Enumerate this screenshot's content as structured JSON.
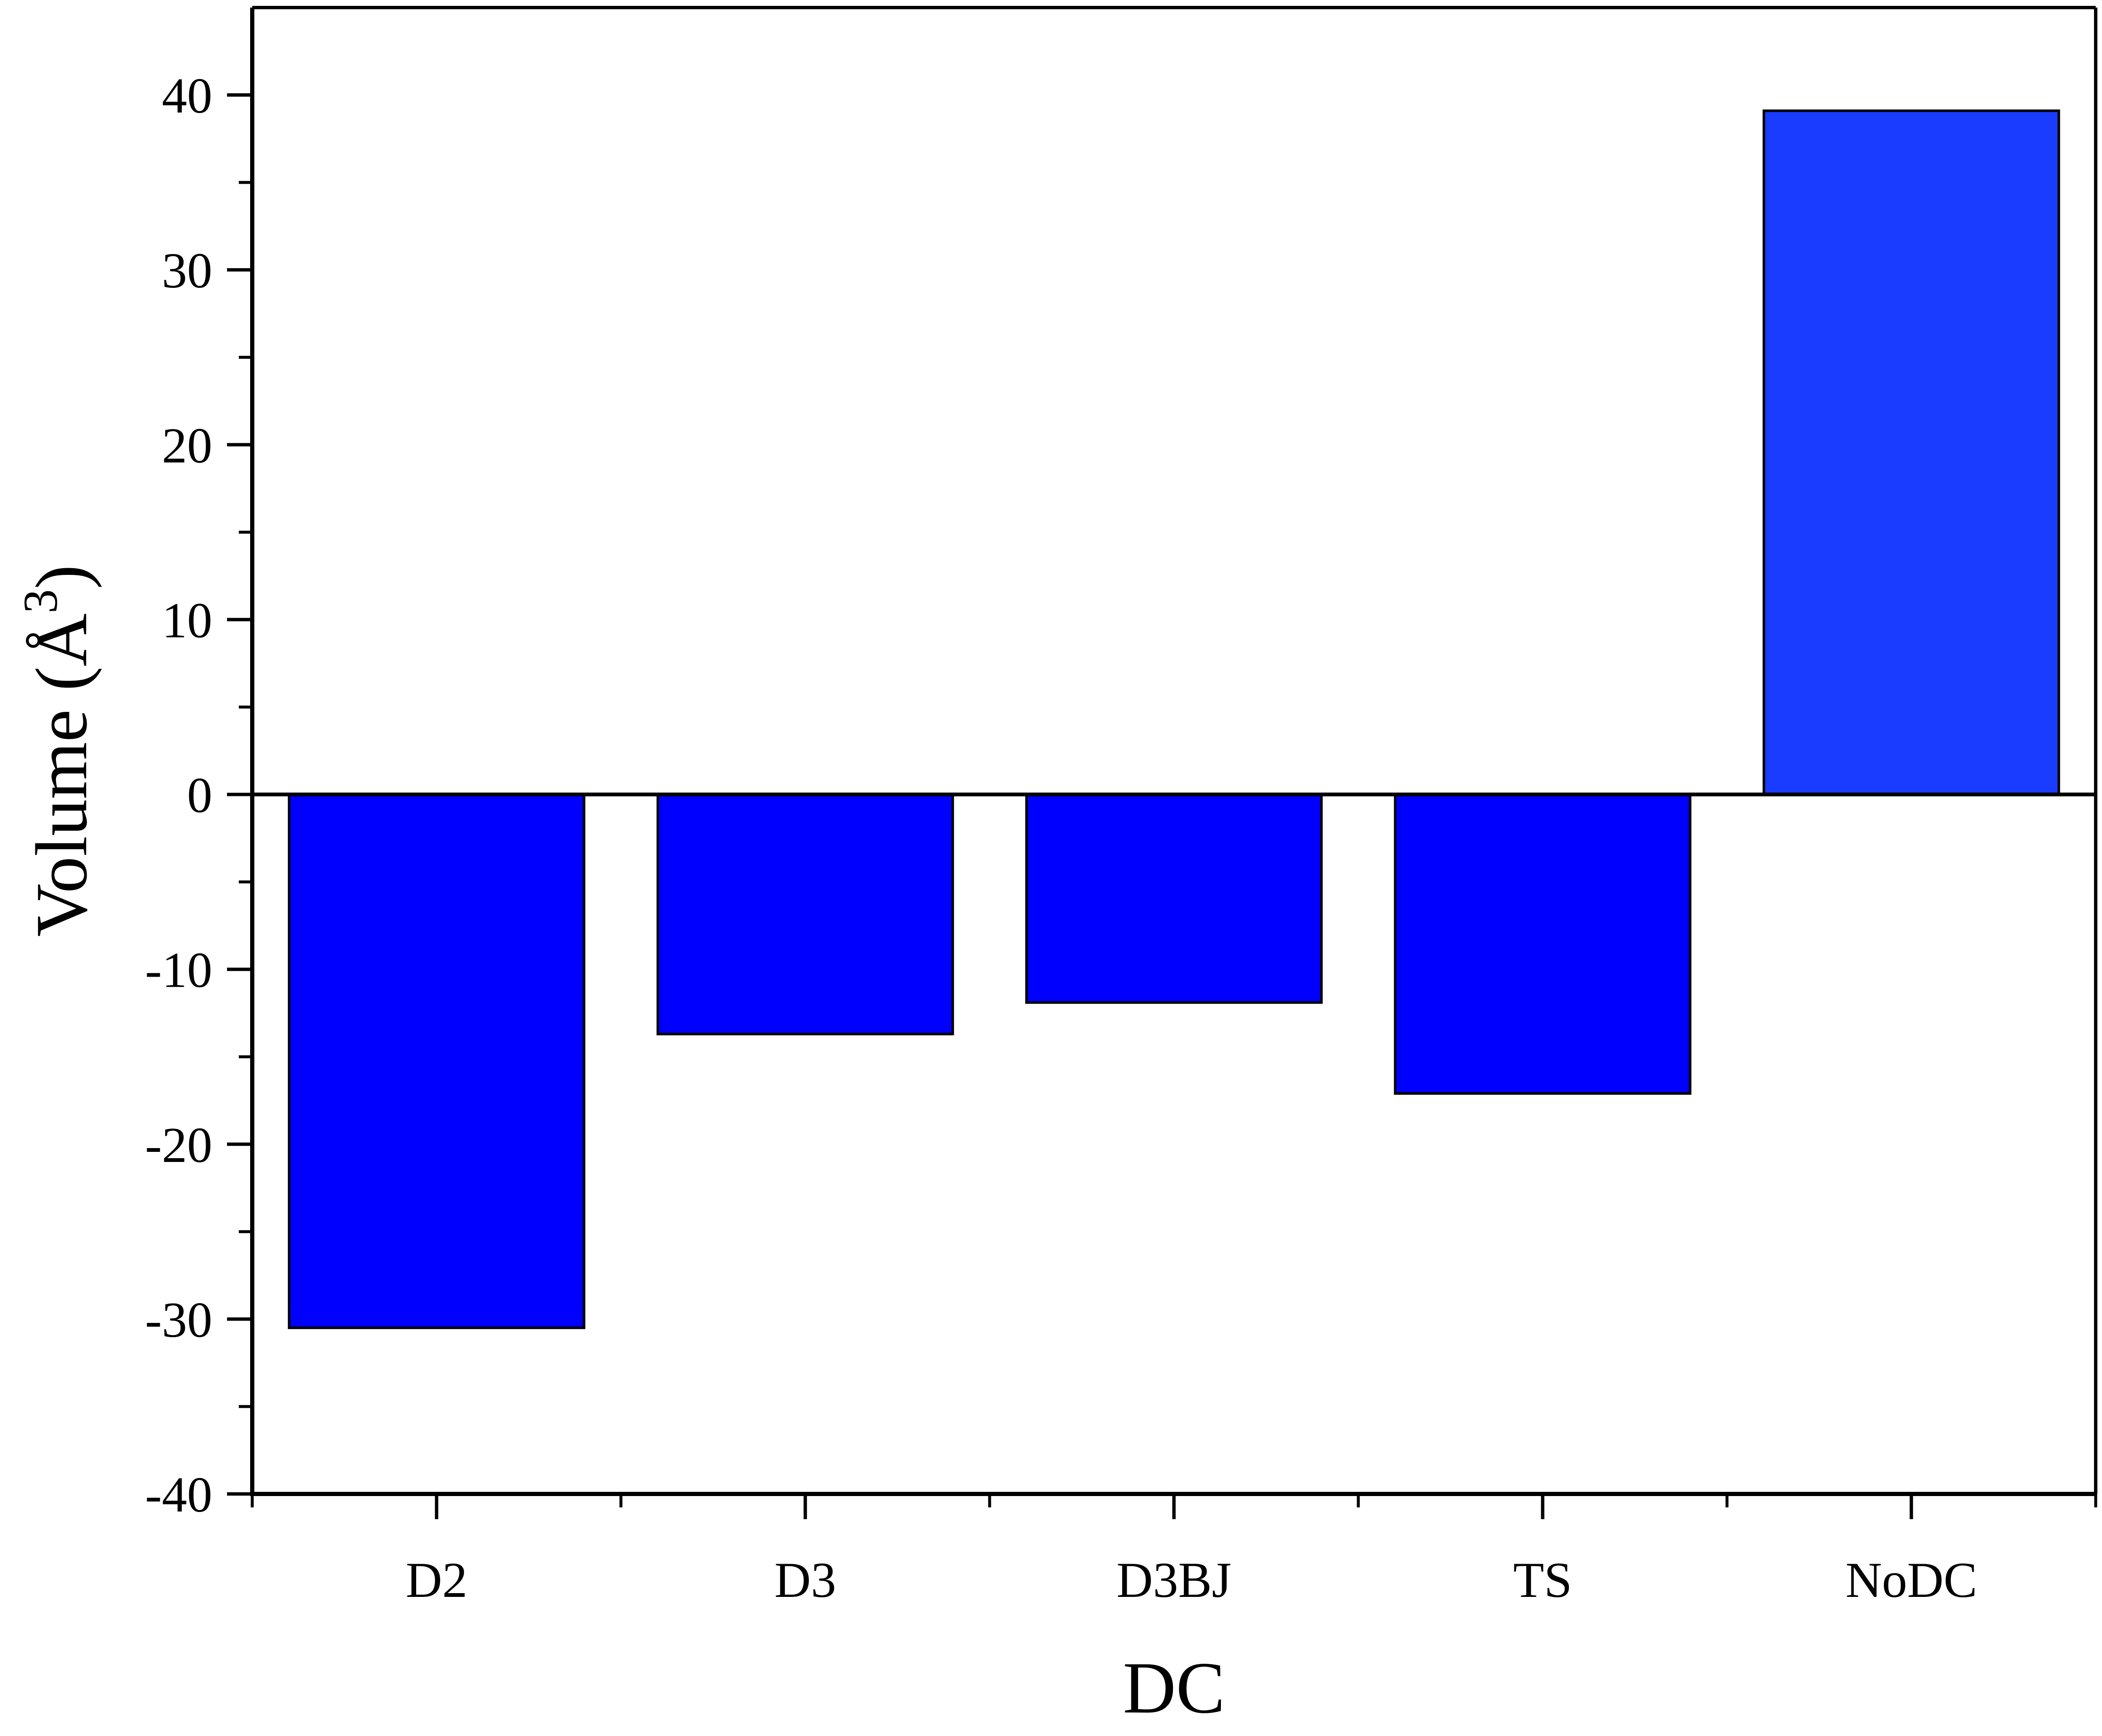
{
  "chart_data": {
    "type": "bar",
    "categories": [
      "D2",
      "D3",
      "D3BJ",
      "TS",
      "NoDC"
    ],
    "values": [
      -30.5,
      -13.7,
      -11.9,
      -17.1,
      39.1
    ],
    "title": "",
    "xlabel": "DC",
    "ylabel": "Volume (Å",
    "ylabel_superscript": "3",
    "ylabel_suffix": ")",
    "ylim": [
      -40,
      45
    ],
    "yticks": [
      -40,
      -30,
      -20,
      -10,
      0,
      10,
      20,
      30,
      40
    ],
    "ytick_labels": [
      "-40",
      "-30",
      "-20",
      "-10",
      "0",
      "10",
      "20",
      "30",
      "40"
    ],
    "grid": false,
    "legend": "none",
    "bar_color": "#0000ff",
    "bar_color_positive": "#1a3cff",
    "bar_edge_color": "#000000"
  }
}
